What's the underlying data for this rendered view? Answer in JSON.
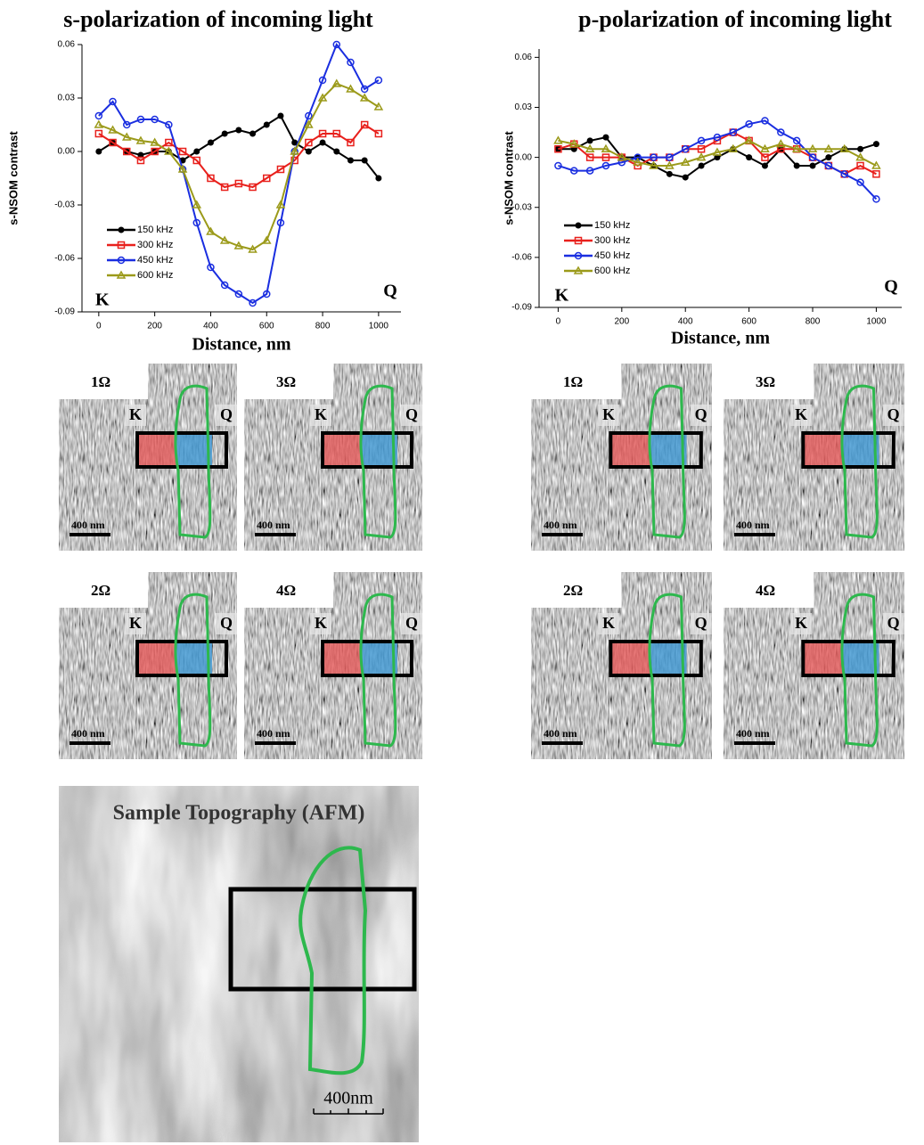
{
  "chart_data": [
    {
      "type": "line",
      "title": "s-polarization of incoming light",
      "x_label": "Distance, nm",
      "y_label": "s-NSOM contrast",
      "x": [
        0,
        50,
        100,
        150,
        200,
        250,
        300,
        350,
        400,
        450,
        500,
        550,
        600,
        650,
        700,
        750,
        800,
        850,
        900,
        950,
        1000
      ],
      "xlim": [
        -60,
        1080
      ],
      "xticks": [
        0,
        200,
        400,
        600,
        800,
        1000
      ],
      "ylim": [
        -0.09,
        0.06
      ],
      "yticks": [
        -0.09,
        -0.06,
        -0.03,
        {
          "value": 0,
          "label": "0.00"
        },
        0.03,
        0.06
      ],
      "legend": "lower left",
      "annotations": [
        "K",
        "Q"
      ],
      "series": [
        {
          "name": "150 kHz",
          "color": "#000000",
          "marker": "circle-filled",
          "values": [
            0.0,
            0.005,
            0.0,
            -0.002,
            0.0,
            0.0,
            -0.005,
            0.0,
            0.005,
            0.01,
            0.012,
            0.01,
            0.015,
            0.02,
            0.005,
            0.0,
            0.005,
            0.0,
            -0.005,
            -0.005,
            -0.015
          ]
        },
        {
          "name": "300 kHz",
          "color": "#e8201c",
          "marker": "square-open",
          "values": [
            0.01,
            0.005,
            0.0,
            -0.005,
            0.0,
            0.005,
            0.0,
            -0.005,
            -0.015,
            -0.02,
            -0.018,
            -0.02,
            -0.015,
            -0.01,
            -0.005,
            0.005,
            0.01,
            0.01,
            0.005,
            0.015,
            0.01
          ]
        },
        {
          "name": "450 kHz",
          "color": "#1a2ee0",
          "marker": "circle-open",
          "values": [
            0.02,
            0.028,
            0.015,
            0.018,
            0.018,
            0.015,
            -0.01,
            -0.04,
            -0.065,
            -0.075,
            -0.08,
            -0.085,
            -0.08,
            -0.04,
            0.0,
            0.02,
            0.04,
            0.06,
            0.05,
            0.035,
            0.04
          ]
        },
        {
          "name": "600 kHz",
          "color": "#9b9a1a",
          "marker": "triangle",
          "values": [
            0.015,
            0.012,
            0.008,
            0.006,
            0.005,
            0.0,
            -0.01,
            -0.03,
            -0.045,
            -0.05,
            -0.053,
            -0.055,
            -0.05,
            -0.03,
            0.0,
            0.015,
            0.03,
            0.038,
            0.035,
            0.03,
            0.025
          ]
        }
      ]
    },
    {
      "type": "line",
      "title": "p-polarization of incoming light",
      "x_label": "Distance, nm",
      "y_label": "s-NSOM contrast",
      "x": [
        0,
        50,
        100,
        150,
        200,
        250,
        300,
        350,
        400,
        450,
        500,
        550,
        600,
        650,
        700,
        750,
        800,
        850,
        900,
        950,
        1000
      ],
      "xlim": [
        -60,
        1080
      ],
      "xticks": [
        0,
        200,
        400,
        600,
        800,
        1000
      ],
      "ylim": [
        -0.09,
        0.065
      ],
      "yticks": [
        -0.09,
        -0.06,
        -0.03,
        {
          "value": 0,
          "label": "0.00"
        },
        0.03,
        0.06
      ],
      "legend": "lower left",
      "annotations": [
        "K",
        "Q"
      ],
      "series": [
        {
          "name": "150 kHz",
          "color": "#000000",
          "marker": "circle-filled",
          "values": [
            0.005,
            0.005,
            0.01,
            0.012,
            0.0,
            0.0,
            -0.005,
            -0.01,
            -0.012,
            -0.005,
            0.0,
            0.005,
            0.0,
            -0.005,
            0.005,
            -0.005,
            -0.005,
            0.0,
            0.005,
            0.005,
            0.008
          ]
        },
        {
          "name": "300 kHz",
          "color": "#e8201c",
          "marker": "square-open",
          "values": [
            0.005,
            0.008,
            0.0,
            0.0,
            0.0,
            -0.005,
            0.0,
            0.0,
            0.005,
            0.005,
            0.01,
            0.015,
            0.01,
            0.0,
            0.005,
            0.005,
            0.0,
            -0.005,
            -0.01,
            -0.005,
            -0.01
          ]
        },
        {
          "name": "450 kHz",
          "color": "#1a2ee0",
          "marker": "circle-open",
          "values": [
            -0.005,
            -0.008,
            -0.008,
            -0.005,
            -0.003,
            0.0,
            0.0,
            0.0,
            0.005,
            0.01,
            0.012,
            0.015,
            0.02,
            0.022,
            0.015,
            0.01,
            0.0,
            -0.005,
            -0.01,
            -0.015,
            -0.025
          ]
        },
        {
          "name": "600 kHz",
          "color": "#9b9a1a",
          "marker": "triangle",
          "values": [
            0.01,
            0.008,
            0.005,
            0.005,
            0.0,
            -0.003,
            -0.005,
            -0.005,
            -0.003,
            0.0,
            0.003,
            0.005,
            0.01,
            0.005,
            0.008,
            0.005,
            0.005,
            0.005,
            0.005,
            0.0,
            -0.005
          ]
        }
      ]
    }
  ],
  "images": {
    "s_panels": [
      {
        "label": "1Ω",
        "k": "K",
        "q": "Q",
        "scale": "400 nm"
      },
      {
        "label": "3Ω",
        "k": "K",
        "q": "Q",
        "scale": "400 nm"
      },
      {
        "label": "2Ω",
        "k": "K",
        "q": "Q",
        "scale": "400 nm"
      },
      {
        "label": "4Ω",
        "k": "K",
        "q": "Q",
        "scale": "400 nm"
      }
    ],
    "p_panels": [
      {
        "label": "1Ω",
        "k": "K",
        "q": "Q",
        "scale": "400 nm"
      },
      {
        "label": "3Ω",
        "k": "K",
        "q": "Q",
        "scale": "400 nm"
      },
      {
        "label": "2Ω",
        "k": "K",
        "q": "Q",
        "scale": "400 nm"
      },
      {
        "label": "4Ω",
        "k": "K",
        "q": "Q",
        "scale": "400 nm"
      }
    ],
    "afm": {
      "title": "Sample Topography (AFM)",
      "scale": "400nm"
    }
  }
}
